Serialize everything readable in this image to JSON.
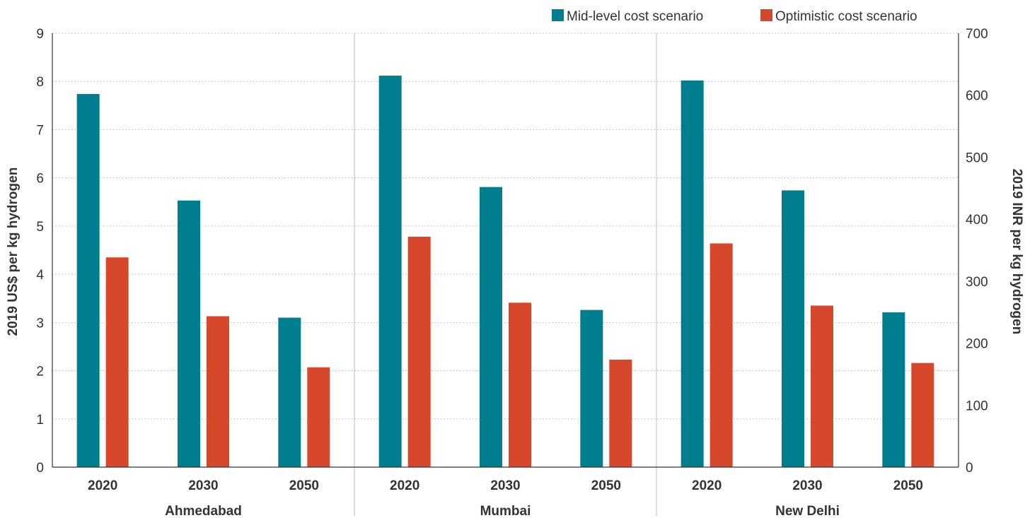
{
  "chart_data": {
    "type": "bar",
    "groups": [
      {
        "name": "Ahmedabad",
        "categories": [
          "2020",
          "2030",
          "2050"
        ]
      },
      {
        "name": "Mumbai",
        "categories": [
          "2020",
          "2030",
          "2050"
        ]
      },
      {
        "name": "New Delhi",
        "categories": [
          "2020",
          "2030",
          "2050"
        ]
      }
    ],
    "series": [
      {
        "name": "Mid-level cost scenario",
        "color": "#007E8F",
        "values": [
          7.74,
          5.53,
          3.1,
          8.12,
          5.81,
          3.26,
          8.02,
          5.74,
          3.21
        ]
      },
      {
        "name": "Optimistic cost scenario",
        "color": "#D6472B",
        "values": [
          4.35,
          3.13,
          2.07,
          4.78,
          3.41,
          2.23,
          4.64,
          3.35,
          2.16
        ]
      }
    ],
    "ylabel": "2019 US$ per kg hydrogen",
    "ylim": [
      0,
      9
    ],
    "yticks": [
      "0",
      "1",
      "2",
      "3",
      "4",
      "5",
      "6",
      "7",
      "8",
      "9"
    ],
    "y2label": "2019 INR per kg hydrogen",
    "y2lim": [
      0,
      700
    ],
    "y2ticks": [
      "0",
      "100",
      "200",
      "300",
      "400",
      "500",
      "600",
      "700"
    ],
    "grid": true,
    "legend_position": "top-right"
  }
}
